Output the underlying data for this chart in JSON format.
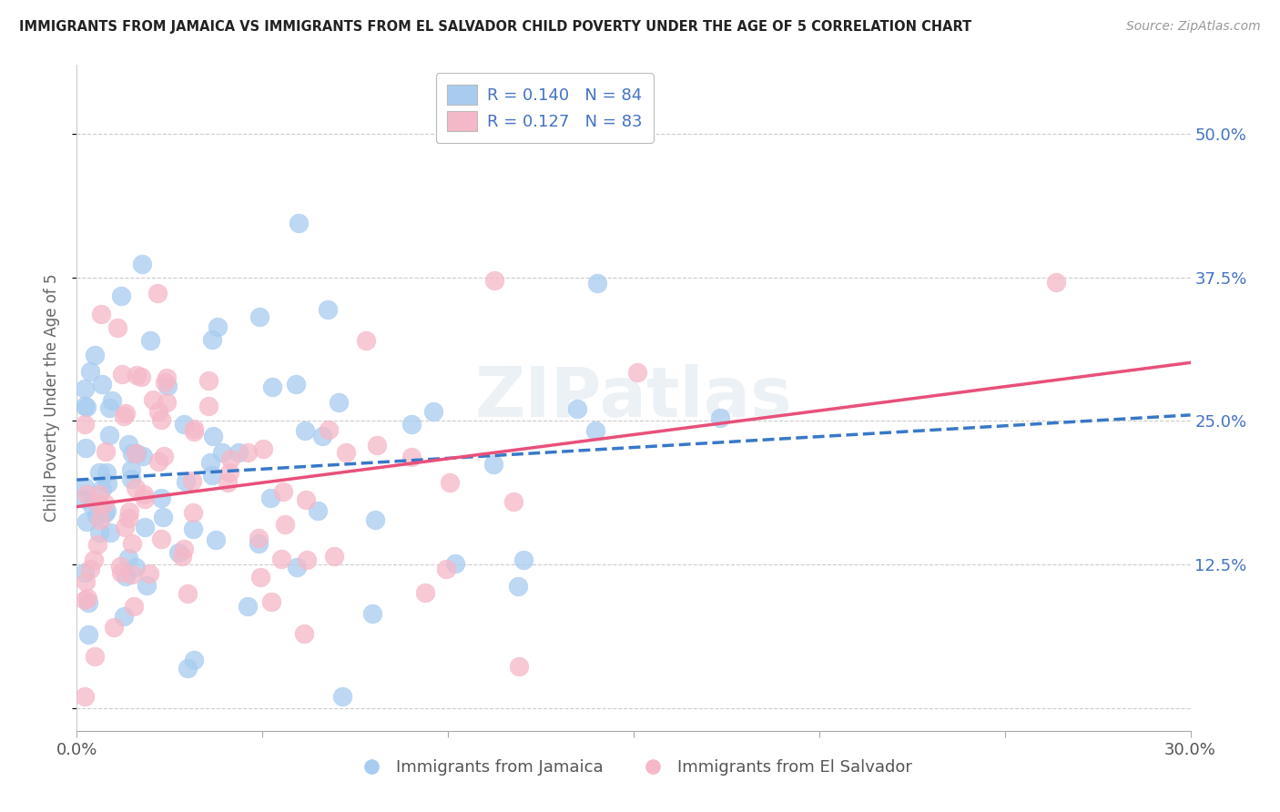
{
  "title": "IMMIGRANTS FROM JAMAICA VS IMMIGRANTS FROM EL SALVADOR CHILD POVERTY UNDER THE AGE OF 5 CORRELATION CHART",
  "source": "Source: ZipAtlas.com",
  "ylabel": "Child Poverty Under the Age of 5",
  "ytick_labels": [
    "",
    "12.5%",
    "25.0%",
    "37.5%",
    "50.0%"
  ],
  "xlim": [
    0.0,
    0.3
  ],
  "ylim": [
    -0.02,
    0.56
  ],
  "jamaica_R": 0.14,
  "jamaica_N": 84,
  "salvador_R": 0.127,
  "salvador_N": 83,
  "jamaica_color": "#A8CCF0",
  "salvador_color": "#F5B8C8",
  "jamaica_line_color": "#3878C8",
  "salvador_line_color": "#E8507A",
  "legend_label_1": "Immigrants from Jamaica",
  "legend_label_2": "Immigrants from El Salvador"
}
